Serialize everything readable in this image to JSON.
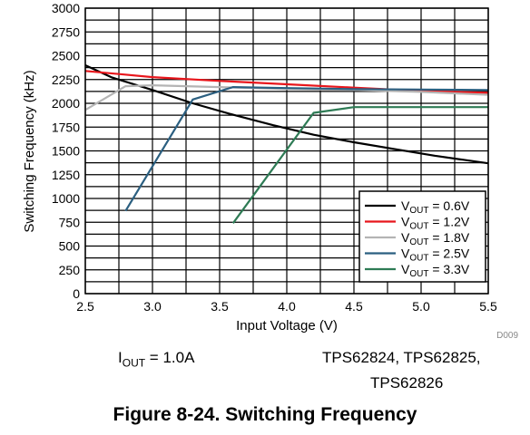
{
  "chart_data": {
    "type": "line",
    "xlabel": "Input Voltage (V)",
    "ylabel": "Switching Frequency (kHz)",
    "xlim": [
      2.5,
      5.5
    ],
    "ylim": [
      0,
      3000
    ],
    "xticks": [
      "2.5",
      "3.0",
      "3.5",
      "4.0",
      "4.5",
      "5.0",
      "5.5"
    ],
    "yticks": [
      "0",
      "250",
      "500",
      "750",
      "1000",
      "1250",
      "1500",
      "1750",
      "2000",
      "2250",
      "2500",
      "2750",
      "3000"
    ],
    "grid": true,
    "legend_position": "bottom-right",
    "series": [
      {
        "name_main": "V",
        "name_sub": "OUT",
        "name_rest": " = 0.6V",
        "color": "#000000",
        "x": [
          2.5,
          2.7,
          3.0,
          3.3,
          3.6,
          3.9,
          4.2,
          4.5,
          4.8,
          5.1,
          5.5
        ],
        "y": [
          2400,
          2270,
          2140,
          2000,
          1880,
          1770,
          1670,
          1590,
          1520,
          1450,
          1370
        ]
      },
      {
        "name_main": "V",
        "name_sub": "OUT",
        "name_rest": " = 1.2V",
        "color": "#e8161c",
        "x": [
          2.5,
          3.0,
          3.5,
          4.0,
          4.5,
          5.0,
          5.5
        ],
        "y": [
          2340,
          2275,
          2235,
          2200,
          2165,
          2130,
          2110
        ]
      },
      {
        "name_main": "V",
        "name_sub": "OUT",
        "name_rest": " = 1.8V",
        "color": "#b4b4b4",
        "x": [
          2.5,
          2.8,
          3.0,
          3.5,
          4.0,
          4.5,
          5.0,
          5.5
        ],
        "y": [
          1930,
          2180,
          2190,
          2170,
          2150,
          2140,
          2120,
          2090
        ]
      },
      {
        "name_main": "V",
        "name_sub": "OUT",
        "name_rest": " = 2.5V",
        "color": "#2b5f80",
        "x": [
          2.8,
          3.3,
          3.6,
          4.0,
          4.5,
          5.0,
          5.5
        ],
        "y": [
          870,
          2040,
          2170,
          2160,
          2150,
          2145,
          2140
        ]
      },
      {
        "name_main": "V",
        "name_sub": "OUT",
        "name_rest": " = 3.3V",
        "color": "#2e7b55",
        "x": [
          3.6,
          4.2,
          4.5,
          5.0,
          5.5
        ],
        "y": [
          740,
          1900,
          1960,
          1960,
          1960
        ]
      }
    ]
  },
  "figure_id": "D009",
  "conditions": {
    "iout_main": "I",
    "iout_sub": "OUT",
    "iout_rest": " = 1.0A",
    "devices_line1": "TPS62824, TPS62825,",
    "devices_line2": "TPS62826"
  },
  "figure_title": "Figure 8-24. Switching Frequency"
}
